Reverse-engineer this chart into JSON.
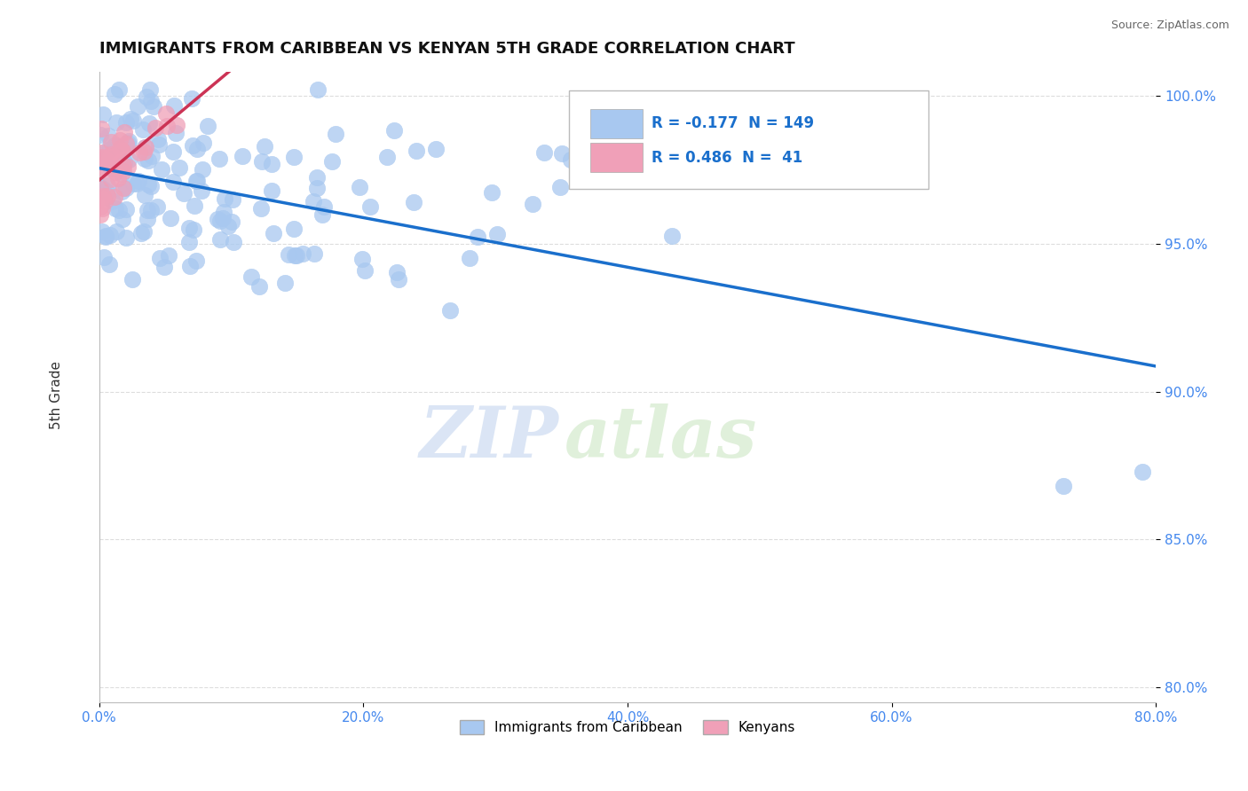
{
  "title": "IMMIGRANTS FROM CARIBBEAN VS KENYAN 5TH GRADE CORRELATION CHART",
  "source_text": "Source: ZipAtlas.com",
  "ylabel": "5th Grade",
  "watermark_zip": "ZIP",
  "watermark_atlas": "atlas",
  "xlim": [
    0.0,
    0.8
  ],
  "ylim": [
    0.795,
    1.008
  ],
  "xtick_labels": [
    "0.0%",
    "20.0%",
    "40.0%",
    "60.0%",
    "80.0%"
  ],
  "xtick_vals": [
    0.0,
    0.2,
    0.4,
    0.6,
    0.8
  ],
  "ytick_labels": [
    "80.0%",
    "85.0%",
    "90.0%",
    "95.0%",
    "100.0%"
  ],
  "ytick_vals": [
    0.8,
    0.85,
    0.9,
    0.95,
    1.0
  ],
  "legend_blue_label": "Immigrants from Caribbean",
  "legend_pink_label": "Kenyans",
  "R_blue": -0.177,
  "N_blue": 149,
  "R_pink": 0.486,
  "N_pink": 41,
  "blue_color": "#a8c8f0",
  "pink_color": "#f0a0b8",
  "blue_line_color": "#1a6fcc",
  "pink_line_color": "#cc3355",
  "tick_color": "#4488ee",
  "title_color": "#111111",
  "source_color": "#666666",
  "grid_color": "#dddddd",
  "seed": 42
}
